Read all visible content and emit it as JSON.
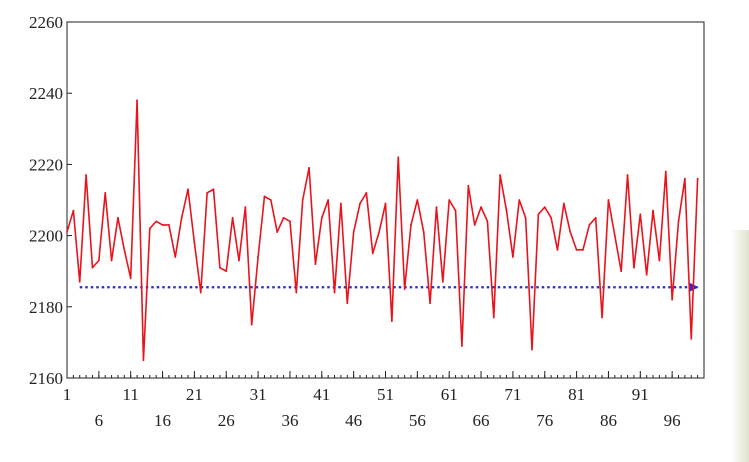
{
  "chart_data": {
    "type": "line",
    "title": "",
    "xlabel": "",
    "ylabel": "",
    "xlim": [
      1,
      101
    ],
    "ylim": [
      2160,
      2260
    ],
    "y_ticks": [
      2160,
      2180,
      2200,
      2220,
      2240,
      2260
    ],
    "x_ticks_upper": [
      1,
      11,
      21,
      31,
      41,
      51,
      61,
      71,
      81,
      91
    ],
    "x_ticks_lower": [
      6,
      16,
      26,
      36,
      46,
      56,
      66,
      76,
      86,
      96
    ],
    "grid": false,
    "legend": "none",
    "colors": {
      "series": "#e8141c",
      "reference": "#2a2acc",
      "axis": "#222222"
    },
    "series": [
      {
        "values": [
          2201,
          2207,
          2187,
          2217,
          2191,
          2193,
          2212,
          2193,
          2205,
          2196,
          2188,
          2238,
          2165,
          2202,
          2204,
          2203,
          2203,
          2194,
          2205,
          2213,
          2198,
          2184,
          2212,
          2213,
          2191,
          2190,
          2205,
          2193,
          2208,
          2175,
          2194,
          2211,
          2210,
          2201,
          2205,
          2204,
          2184,
          2210,
          2219,
          2192,
          2205,
          2210,
          2184,
          2209,
          2181,
          2201,
          2209,
          2212,
          2195,
          2201,
          2209,
          2176,
          2222,
          2185,
          2203,
          2210,
          2201,
          2181,
          2208,
          2187,
          2210,
          2207,
          2169,
          2214,
          2203,
          2208,
          2204,
          2177,
          2217,
          2207,
          2194,
          2210,
          2205,
          2168,
          2206,
          2208,
          2205,
          2196,
          2209,
          2201,
          2196,
          2196,
          2203,
          2205,
          2177,
          2210,
          2200,
          2190,
          2217,
          2191,
          2206,
          2189,
          2207,
          2193,
          2218,
          2182,
          2204,
          2216,
          2171,
          2216
        ]
      }
    ],
    "reference_line": {
      "y": 2185.5,
      "x_start": 3,
      "x_end": 100,
      "style": "dotted",
      "arrow": "right"
    }
  }
}
